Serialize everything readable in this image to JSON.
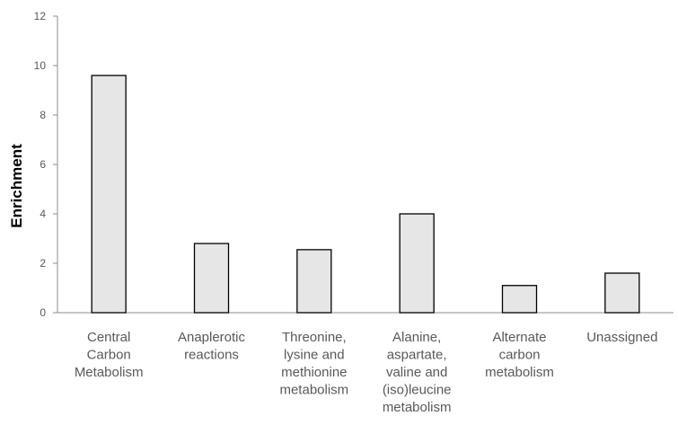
{
  "chart_data": {
    "type": "bar",
    "title": "",
    "xlabel": "",
    "ylabel": "Enrichment",
    "ylim": [
      0,
      12
    ],
    "yticks": [
      0,
      2,
      4,
      6,
      8,
      10,
      12
    ],
    "grid": false,
    "legend": "none",
    "categories": [
      [
        "Central",
        "Carbon",
        "Metabolism"
      ],
      [
        "Anaplerotic",
        "reactions"
      ],
      [
        "Threonine,",
        "lysine and",
        "methionine",
        "metabolism"
      ],
      [
        "Alanine,",
        "aspartate,",
        "valine and",
        "(iso)leucine",
        "metabolism"
      ],
      [
        "Alternate",
        "carbon",
        "metabolism"
      ],
      [
        "Unassigned"
      ]
    ],
    "values": [
      9.6,
      2.8,
      2.55,
      4.0,
      1.1,
      1.6
    ],
    "colors": {
      "bar_fill": "#e6e6e6",
      "bar_stroke": "#000000",
      "axis": "#8c8c8c",
      "tick_text": "#595959"
    }
  }
}
